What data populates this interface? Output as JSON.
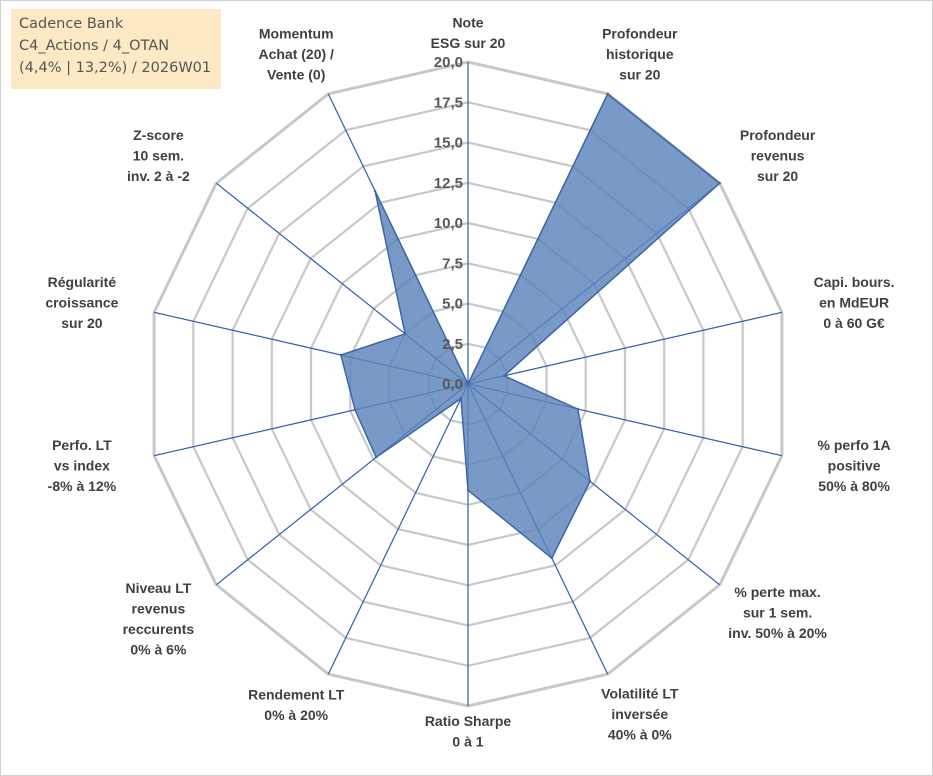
{
  "info": {
    "line1": "Cadence Bank",
    "line2": "C4_Actions / 4_OTAN",
    "line3": "(4,4% | 13,2%) / 2026W01"
  },
  "colors": {
    "grid": "#c8c8c8",
    "spoke": "#2f5ea8",
    "fill": "#5b84b9",
    "stroke": "#3d66a6"
  },
  "chart_data": {
    "type": "radar",
    "rmax": 20,
    "ticks": [
      "0,0",
      "2,5",
      "5,0",
      "7,5",
      "10,0",
      "12,5",
      "15,0",
      "17,5",
      "20,0"
    ],
    "axes": [
      {
        "label": [
          "Note",
          "ESG sur 20"
        ],
        "value": 0
      },
      {
        "label": [
          "Profondeur",
          "historique",
          "sur 20"
        ],
        "value": 20
      },
      {
        "label": [
          "Profondeur",
          "revenus",
          "sur 20"
        ],
        "value": 20
      },
      {
        "label": [
          "Capi. bours.",
          "en MdEUR",
          "0 à 60 G€"
        ],
        "value": 2.3
      },
      {
        "label": [
          "% perfo 1A",
          "positive",
          "50% à 80%"
        ],
        "value": 7.0
      },
      {
        "label": [
          "% perte max.",
          "sur 1 sem.",
          "inv. 50% à 20%"
        ],
        "value": 9.7
      },
      {
        "label": [
          "Volatilité LT",
          "inversée",
          "40% à 0%"
        ],
        "value": 12.0
      },
      {
        "label": [
          "Ratio Sharpe",
          "0 à 1"
        ],
        "value": 6.6
      },
      {
        "label": [
          "Rendement LT",
          "0% à 20%"
        ],
        "value": 1.0
      },
      {
        "label": [
          "Niveau LT",
          "revenus",
          "reccurents",
          "0% à 6%"
        ],
        "value": 7.3
      },
      {
        "label": [
          "Perfo. LT",
          "vs index",
          "-8% à 12%"
        ],
        "value": 7.2
      },
      {
        "label": [
          "Régularité",
          "croissance",
          "sur 20"
        ],
        "value": 8.1
      },
      {
        "label": [
          "Z-score",
          "10 sem.",
          "inv. 2 à -2"
        ],
        "value": 5.0
      },
      {
        "label": [
          "Momentum",
          "Achat (20) /",
          "Vente (0)"
        ],
        "value": 13.3
      }
    ]
  }
}
